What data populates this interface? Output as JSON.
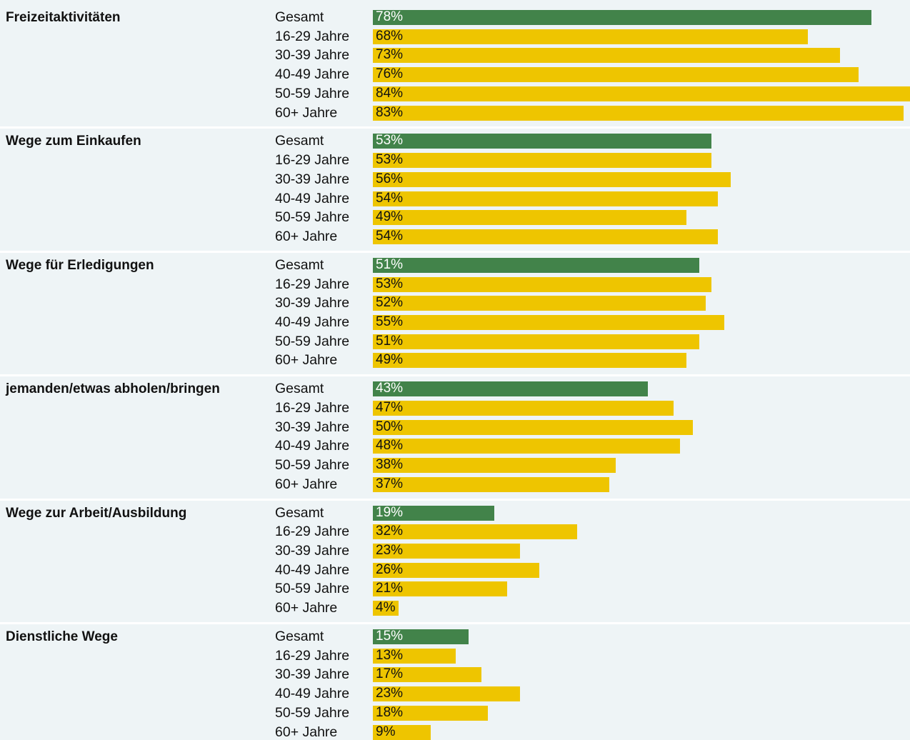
{
  "colors": {
    "total": "#42834a",
    "age": "#eec500",
    "total_text": "#ffffff",
    "age_text": "#111111",
    "background": "#eef4f6"
  },
  "chart_data": {
    "type": "bar",
    "orientation": "horizontal",
    "unit": "%",
    "xlim": [
      0,
      84
    ],
    "row_labels": [
      "Gesamt",
      "16-29 Jahre",
      "30-39 Jahre",
      "40-49 Jahre",
      "50-59 Jahre",
      "60+ Jahre"
    ],
    "groups": [
      {
        "title": "Freizeitaktivitäten",
        "values": [
          78,
          68,
          73,
          76,
          84,
          83
        ]
      },
      {
        "title": "Wege zum Einkaufen",
        "values": [
          53,
          53,
          56,
          54,
          49,
          54
        ]
      },
      {
        "title": "Wege für Erledigungen",
        "values": [
          51,
          53,
          52,
          55,
          51,
          49
        ]
      },
      {
        "title": "jemanden/etwas abholen/bringen",
        "values": [
          43,
          47,
          50,
          48,
          38,
          37
        ]
      },
      {
        "title": "Wege zur Arbeit/Ausbildung",
        "values": [
          19,
          32,
          23,
          26,
          21,
          4
        ]
      },
      {
        "title": "Dienstliche Wege",
        "values": [
          15,
          13,
          17,
          23,
          18,
          9
        ]
      }
    ]
  }
}
